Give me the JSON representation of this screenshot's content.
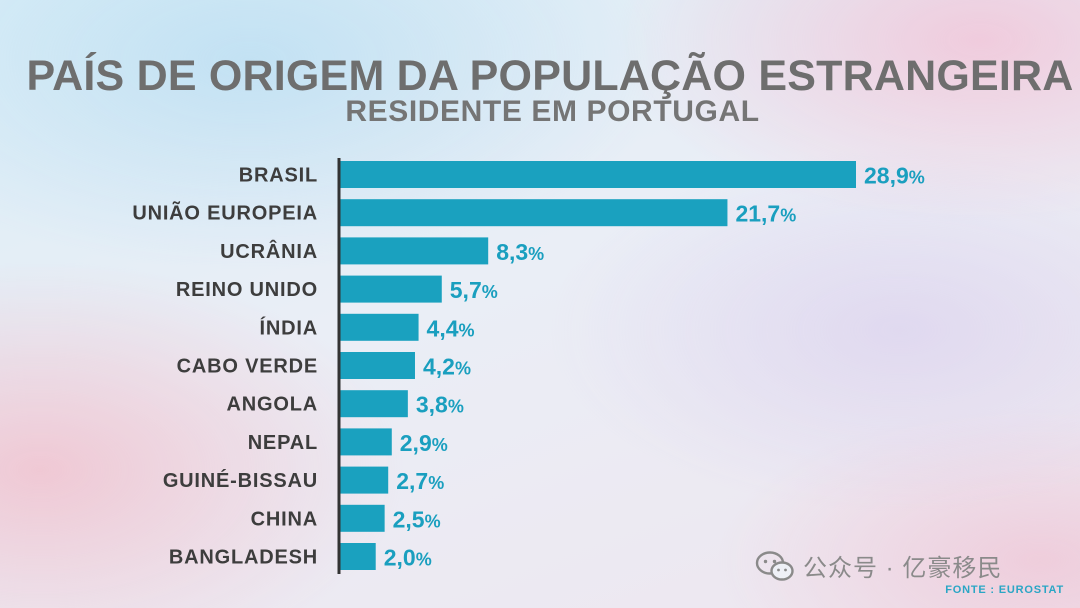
{
  "header": {
    "title": "PAÍS DE ORIGEM DA POPULAÇÃO ESTRANGEIRA",
    "subtitle": "RESIDENTE EM PORTUGAL"
  },
  "footer": {
    "watermark": "公众号 · 亿豪移民",
    "source": "FONTE : EUROSTAT"
  },
  "colors": {
    "bar": "#1aa1bf",
    "axis": "#333333",
    "value_text": "#1a9fbf"
  },
  "chart_data": {
    "type": "bar",
    "orientation": "horizontal",
    "categories": [
      "BRASIL",
      "UNIÃO EUROPEIA",
      "UCRÂNIA",
      "REINO UNIDO",
      "ÍNDIA",
      "CABO VERDE",
      "ANGOLA",
      "NEPAL",
      "GUINÉ-BISSAU",
      "CHINA",
      "BANGLADESH"
    ],
    "values": [
      28.9,
      21.7,
      8.3,
      5.7,
      4.4,
      4.2,
      3.8,
      2.9,
      2.7,
      2.5,
      2.0
    ],
    "value_labels": [
      "28,9",
      "21,7",
      "8,3",
      "5,7",
      "4,4",
      "4,2",
      "3,8",
      "2,9",
      "2,7",
      "2,5",
      "2,0"
    ],
    "unit": "%",
    "title": "PAÍS DE ORIGEM DA POPULAÇÃO ESTRANGEIRA",
    "subtitle": "RESIDENTE EM PORTUGAL",
    "xlim": [
      0,
      28.9
    ],
    "grid": false,
    "legend": "none"
  }
}
